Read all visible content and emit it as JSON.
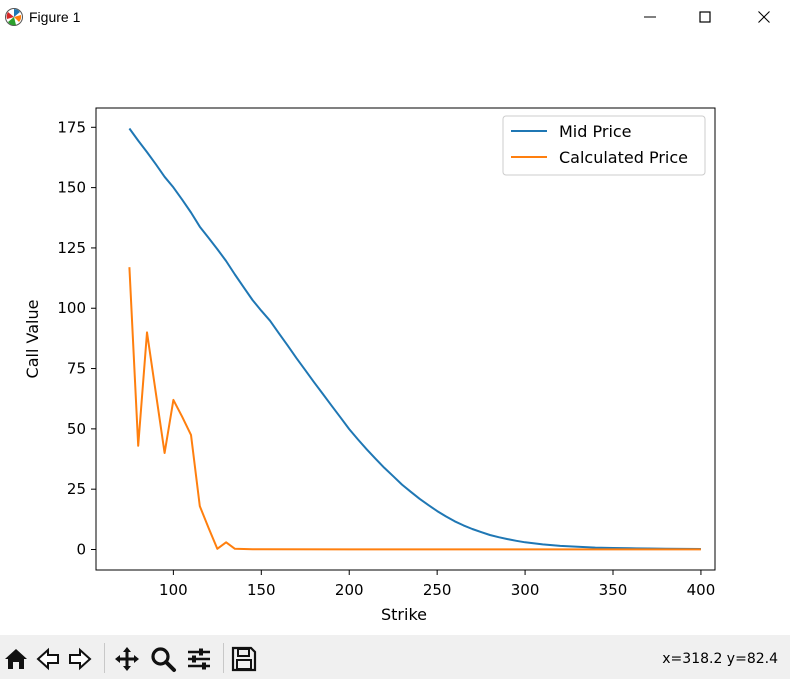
{
  "window": {
    "title": "Figure 1"
  },
  "toolbar": {
    "tools": [
      "home-icon",
      "back-icon",
      "forward-icon",
      "pan-icon",
      "zoom-icon",
      "configure-icon",
      "save-icon"
    ],
    "coords": "x=318.2 y=82.4"
  },
  "chart_data": {
    "type": "line",
    "title": "",
    "xlabel": "Strike",
    "ylabel": "Call Value",
    "xlim": [
      56,
      408
    ],
    "ylim": [
      -8.5,
      183
    ],
    "xticks": [
      100,
      150,
      200,
      250,
      300,
      350,
      400
    ],
    "yticks": [
      0,
      25,
      50,
      75,
      100,
      125,
      150,
      175
    ],
    "legend": "upper right",
    "grid": false,
    "series": [
      {
        "name": "Mid Price",
        "color": "#1f77b4",
        "x": [
          75,
          80,
          85,
          90,
          95,
          100,
          105,
          110,
          115,
          120,
          125,
          130,
          135,
          140,
          145,
          150,
          155,
          160,
          165,
          170,
          175,
          180,
          185,
          190,
          195,
          200,
          205,
          210,
          215,
          220,
          225,
          230,
          235,
          240,
          245,
          250,
          255,
          260,
          265,
          270,
          275,
          280,
          285,
          290,
          295,
          300,
          310,
          320,
          330,
          340,
          350,
          360,
          370,
          380,
          390,
          400
        ],
        "y": [
          174.5,
          169.5,
          164.7,
          159.7,
          154.5,
          150.1,
          145.0,
          139.7,
          133.8,
          129.2,
          124.5,
          119.6,
          114.0,
          108.7,
          103.4,
          99.0,
          94.8,
          89.6,
          84.5,
          79.3,
          74.3,
          69.3,
          64.5,
          59.6,
          54.8,
          49.9,
          45.6,
          41.5,
          37.6,
          33.8,
          30.4,
          26.9,
          23.9,
          21.0,
          18.4,
          15.9,
          13.7,
          11.7,
          10.0,
          8.5,
          7.2,
          6.0,
          5.1,
          4.3,
          3.6,
          3.0,
          2.1,
          1.5,
          1.1,
          0.8,
          0.6,
          0.5,
          0.4,
          0.3,
          0.25,
          0.2
        ]
      },
      {
        "name": "Calculated Price",
        "color": "#ff7f0e",
        "x": [
          75,
          80,
          85,
          90,
          95,
          100,
          105,
          110,
          115,
          120,
          125,
          130,
          135,
          140,
          145,
          150,
          200,
          250,
          300,
          350,
          400
        ],
        "y": [
          117,
          43,
          90,
          65,
          40,
          62,
          55,
          47.5,
          18,
          9,
          0.3,
          3,
          0.3,
          0.2,
          0.1,
          0.1,
          0.05,
          0.05,
          0.05,
          0.05,
          0.05
        ]
      }
    ]
  }
}
